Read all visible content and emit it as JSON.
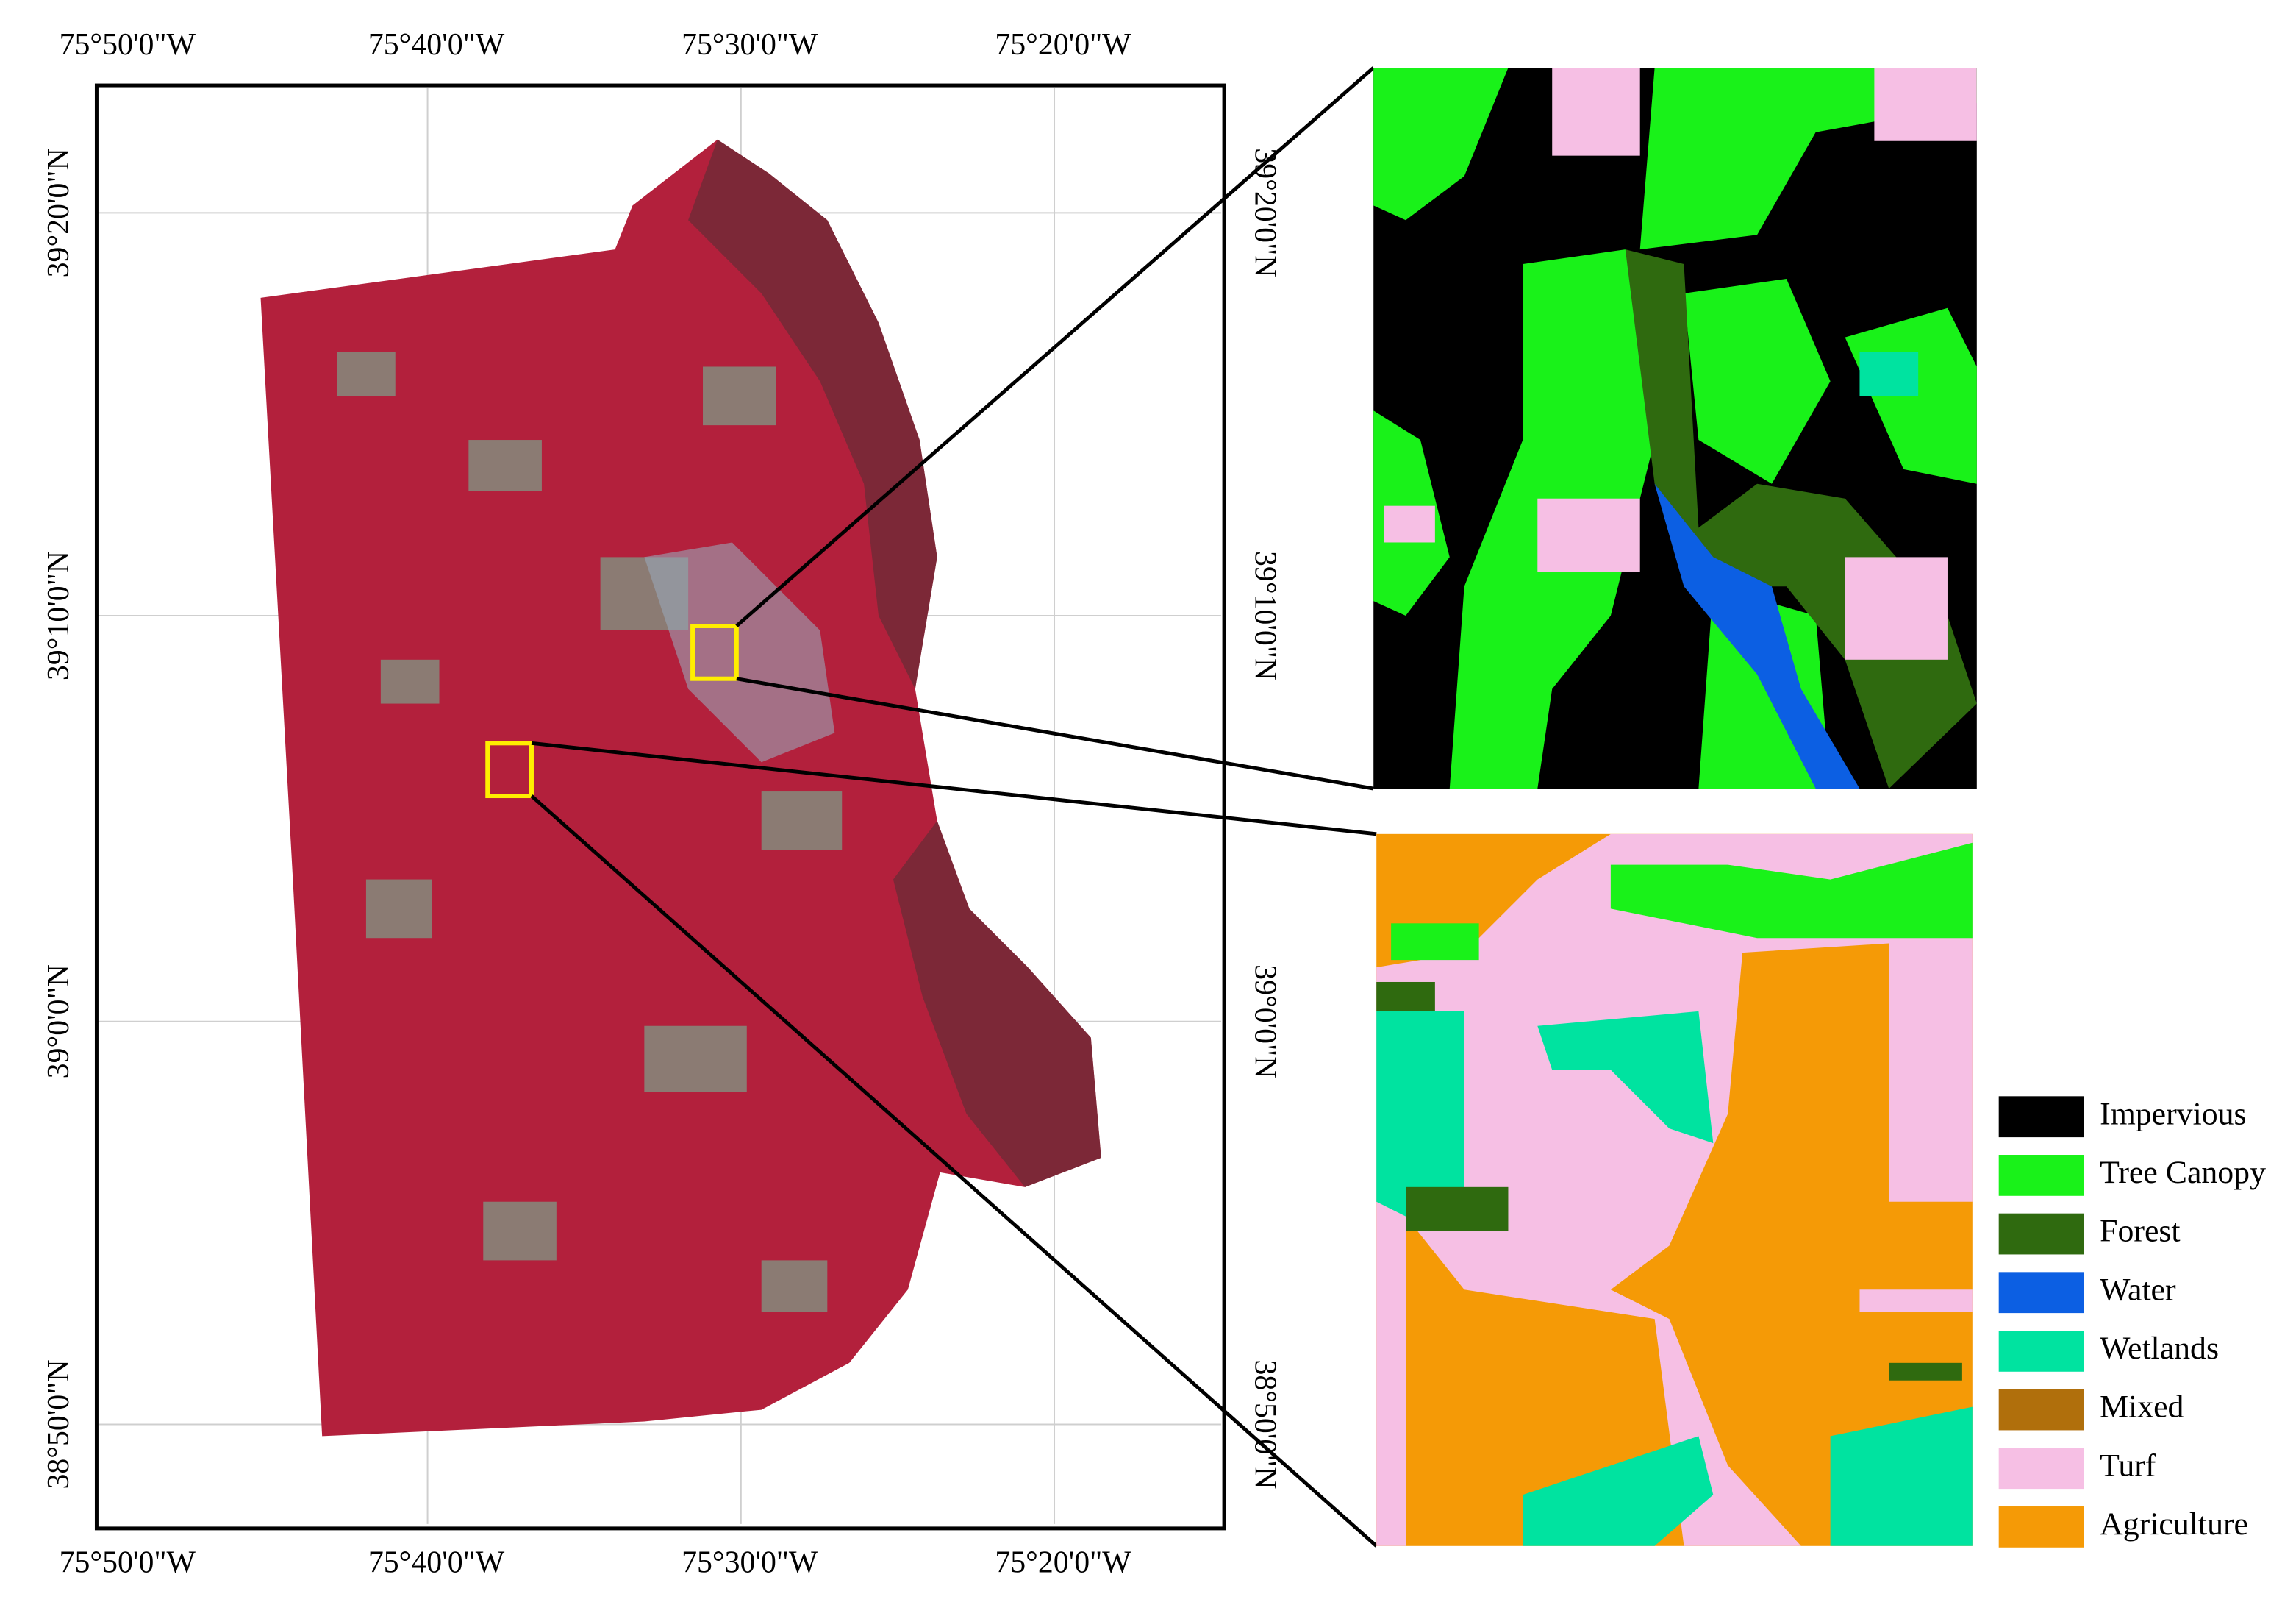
{
  "map": {
    "lon_labels_top": [
      "75°50'0\"W",
      "75°40'0\"W",
      "75°30'0\"W",
      "75°20'0\"W"
    ],
    "lon_labels_bottom": [
      "75°50'0\"W",
      "75°40'0\"W",
      "75°30'0\"W",
      "75°20'0\"W"
    ],
    "lat_labels_left": [
      "39°20'0\"N",
      "39°10'0\"N",
      "39°0'0\"N",
      "38°50'0\"N"
    ],
    "lat_labels_right": [
      "39°20'0\"N",
      "39°10'0\"N",
      "39°0'0\"N",
      "38°50'0\"N"
    ]
  },
  "legend": {
    "items": [
      {
        "label": "Impervious",
        "color": "#000000"
      },
      {
        "label": "Tree Canopy",
        "color": "#19f219"
      },
      {
        "label": "Forest",
        "color": "#2f6a0f"
      },
      {
        "label": "Water",
        "color": "#0c5fe3"
      },
      {
        "label": "Wetlands",
        "color": "#00e3a0"
      },
      {
        "label": "Mixed",
        "color": "#b06f0c"
      },
      {
        "label": "Turf",
        "color": "#f6bfe4"
      },
      {
        "label": "Agriculture",
        "color": "#f59a06"
      }
    ]
  }
}
